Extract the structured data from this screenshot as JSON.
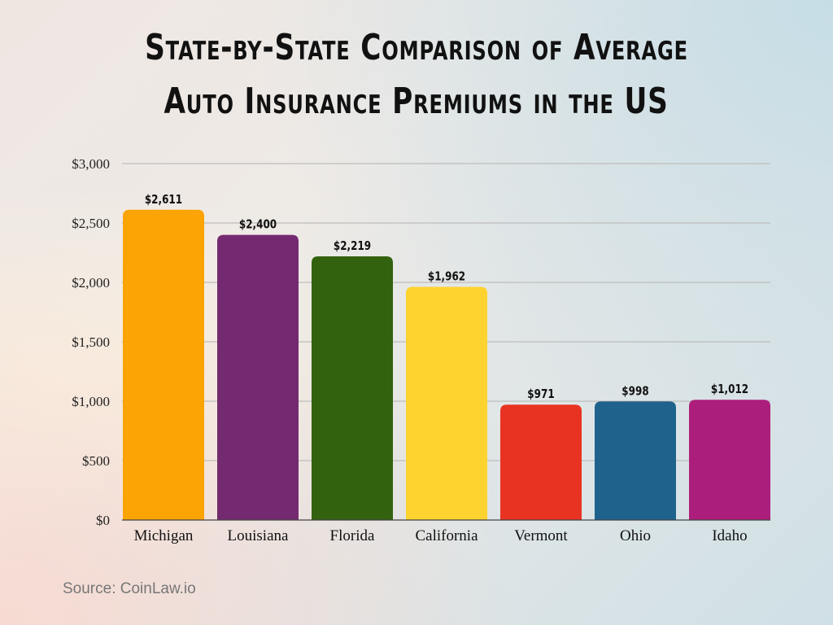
{
  "title_lines": [
    "State-by-State Comparison of Average",
    "Auto Insurance Premiums in the US"
  ],
  "source": "Source: CoinLaw.io",
  "chart_data": {
    "type": "bar",
    "title": "State-by-State Comparison of Average Auto Insurance Premiums in the US",
    "categories": [
      "Michigan",
      "Louisiana",
      "Florida",
      "California",
      "Vermont",
      "Ohio",
      "Idaho"
    ],
    "values": [
      2611,
      2400,
      2219,
      1962,
      971,
      998,
      1012
    ],
    "data_labels": [
      "$2,611",
      "$2,400",
      "$2,219",
      "$1,962",
      "$971",
      "$998",
      "$1,012"
    ],
    "colors": [
      "#fba404",
      "#742a70",
      "#33620f",
      "#fed22f",
      "#e93322",
      "#1f628c",
      "#ac1e7b"
    ],
    "yticks": [
      0,
      500,
      1000,
      1500,
      2000,
      2500,
      3000
    ],
    "ytick_labels": [
      "$0",
      "$500",
      "$1,000",
      "$1,500",
      "$2,000",
      "$2,500",
      "$3,000"
    ],
    "ylim": [
      0,
      3000
    ],
    "grid": true,
    "xlabel": "",
    "ylabel": ""
  }
}
